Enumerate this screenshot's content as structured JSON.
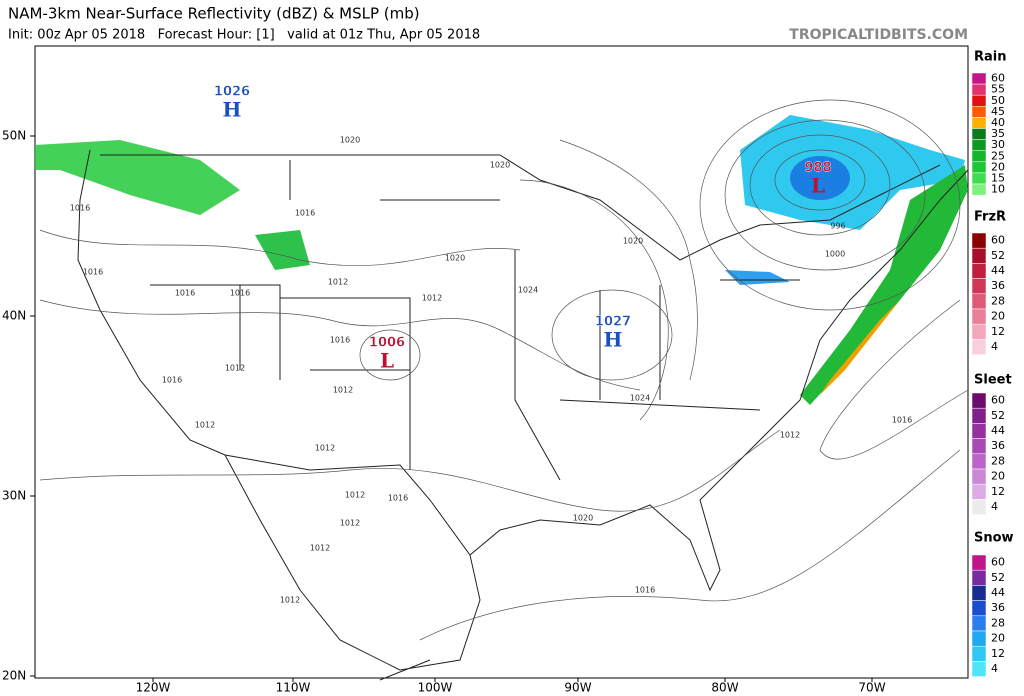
{
  "header": {
    "title": "NAM-3km Near-Surface Reflectivity (dBZ) & MSLP (mb)",
    "subtitle": "Init: 00z Apr 05 2018   Forecast Hour: [1]   valid at 01z Thu, Apr 05 2018",
    "source": "TROPICALTIDBITS.COM"
  },
  "map": {
    "lat_labels": [
      "50N",
      "40N",
      "30N",
      "20N"
    ],
    "lon_labels": [
      "120W",
      "110W",
      "100W",
      "90W",
      "80W",
      "70W"
    ],
    "pressure_centers": [
      {
        "letter": "H",
        "value": 1026
      },
      {
        "letter": "H",
        "value": 1027
      },
      {
        "letter": "L",
        "value": 1006
      },
      {
        "letter": "L",
        "value": 988
      }
    ],
    "isobar_labels": [
      1020,
      1020,
      1016,
      1016,
      1016,
      1016,
      1016,
      1012,
      1012,
      1020,
      1024,
      1020,
      1016,
      1012,
      1012,
      1012,
      1012,
      1024,
      1012,
      1016,
      1016,
      1012,
      1012,
      1012,
      1012,
      1020,
      1016,
      996,
      1000,
      1016
    ]
  },
  "legends": [
    {
      "title": "Rain",
      "levels": [
        60,
        55,
        50,
        45,
        40,
        35,
        30,
        25,
        20,
        15,
        10
      ]
    },
    {
      "title": "FrzR",
      "levels": [
        60,
        52,
        44,
        36,
        28,
        20,
        12,
        4
      ]
    },
    {
      "title": "Sleet",
      "levels": [
        60,
        52,
        44,
        36,
        28,
        20,
        12,
        4
      ]
    },
    {
      "title": "Snow",
      "levels": [
        60,
        52,
        44,
        36,
        28,
        20,
        12,
        4
      ]
    }
  ]
}
